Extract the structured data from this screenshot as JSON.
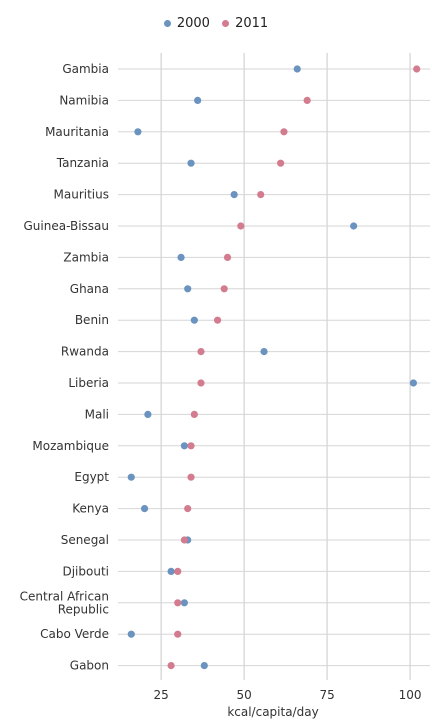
{
  "colors": {
    "s2000": "#6b93bf",
    "s2011": "#d47c8f",
    "grid": "#d6d6d6"
  },
  "chart_data": {
    "type": "scatter",
    "title": "",
    "xlabel": "kcal/capita/day",
    "ylabel": "",
    "xlim": [
      12,
      106
    ],
    "xticks": [
      25,
      50,
      75,
      100
    ],
    "legend": "top-center",
    "categories": [
      "Gambia",
      "Namibia",
      "Mauritania",
      "Tanzania",
      "Mauritius",
      "Guinea-Bissau",
      "Zambia",
      "Ghana",
      "Benin",
      "Rwanda",
      "Liberia",
      "Mali",
      "Mozambique",
      "Egypt",
      "Kenya",
      "Senegal",
      "Djibouti",
      "Central African Republic",
      "Cabo Verde",
      "Gabon"
    ],
    "series": [
      {
        "name": "2000",
        "values": [
          66,
          36,
          18,
          34,
          47,
          83,
          31,
          33,
          35,
          56,
          101,
          21,
          32,
          16,
          20,
          33,
          28,
          32,
          16,
          38
        ]
      },
      {
        "name": "2011",
        "values": [
          102,
          69,
          62,
          61,
          55,
          49,
          45,
          44,
          42,
          37,
          37,
          35,
          34,
          34,
          33,
          32,
          30,
          30,
          30,
          28
        ]
      }
    ]
  }
}
